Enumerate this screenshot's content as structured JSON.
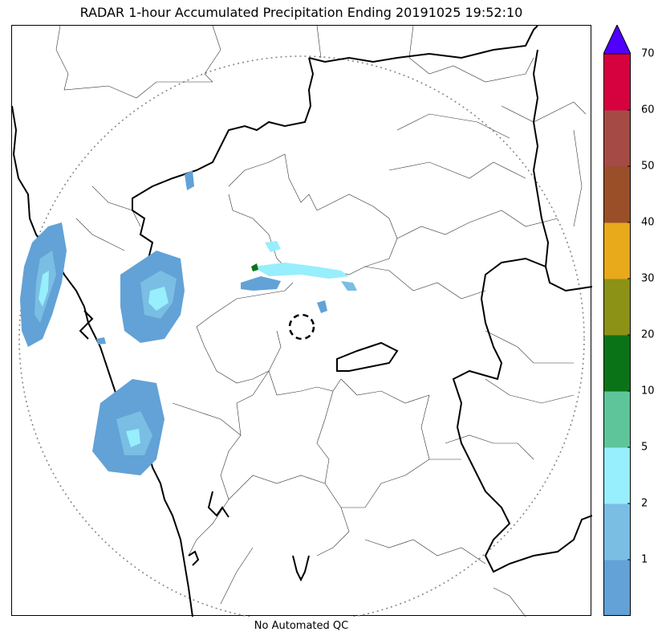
{
  "title": "RADAR 1-hour Accumulated Precipitation Ending 20191025 19:52:10",
  "caption": "No Automated QC",
  "colorbar": {
    "levels": [
      "",
      "1",
      "2",
      "5",
      "10",
      "20",
      "30",
      "40",
      "50",
      "60",
      "70"
    ],
    "colors": [
      "#62a2d6",
      "#7abee4",
      "#97eefc",
      "#5ec59b",
      "#0b7317",
      "#8b9216",
      "#e8a91b",
      "#9a4f28",
      "#a64a45",
      "#d6013f"
    ],
    "extend_color": "#5000ff"
  },
  "colors": {
    "rain_light": "#62a2d6",
    "rain_medium": "#7abee4",
    "rain_heavy": "#97eefc",
    "rain_green": "#0b7317",
    "range_ring": "#888888"
  },
  "icons": {
    "radar_site": "dashed-circle-radar-site"
  }
}
